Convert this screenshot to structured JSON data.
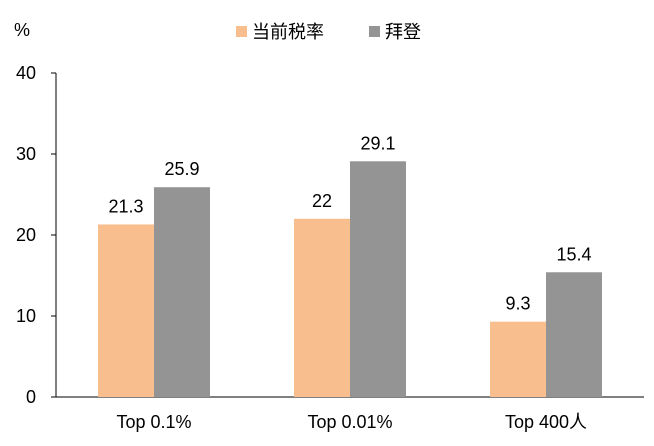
{
  "chart_data": {
    "type": "bar",
    "categories": [
      "Top 0.1%",
      "Top 0.01%",
      "Top 400人"
    ],
    "series": [
      {
        "name": "当前税率",
        "values": [
          21.3,
          22,
          9.3
        ],
        "labels": [
          "21.3",
          "22",
          "9.3"
        ],
        "color": "#F9BE8E"
      },
      {
        "name": "拜登",
        "values": [
          25.9,
          29.1,
          15.4
        ],
        "labels": [
          "25.9",
          "29.1",
          "15.4"
        ],
        "color": "#949494"
      }
    ],
    "ylabel": "%",
    "ylim": [
      0,
      40
    ],
    "yticks": [
      0,
      10,
      20,
      30,
      40
    ],
    "legend_position": "top-center",
    "grid": false
  }
}
